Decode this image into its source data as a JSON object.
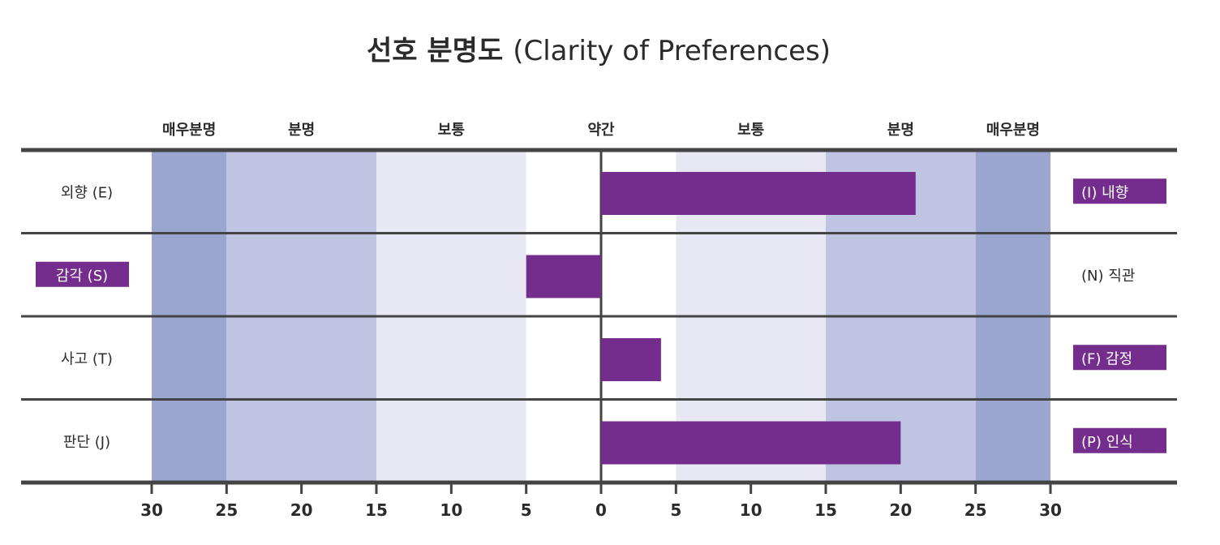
{
  "chart_data": {
    "type": "bar",
    "title_bold": "선호 분명도",
    "title_light": "(Clarity of Preferences)",
    "xlim": [
      -30,
      30
    ],
    "ticks": [
      30,
      25,
      20,
      15,
      10,
      5,
      0,
      5,
      10,
      15,
      20,
      25,
      30
    ],
    "clarity_bands": [
      "매우분명",
      "분명",
      "보통",
      "약간",
      "보통",
      "분명",
      "매우분명"
    ],
    "band_colors": {
      "very_clear": "#9aa6d0",
      "clear": "#bfc4e2",
      "moderate": "#e8e8f4",
      "slight": "#ffffff"
    },
    "bar_color": "#742d8c",
    "grid_color": "#444444",
    "rows": [
      {
        "left_label": "외향 (E)",
        "right_label": "(I) 내향",
        "value": 21,
        "highlight": "right"
      },
      {
        "left_label": "감각 (S)",
        "right_label": "(N) 직관",
        "value": -5,
        "highlight": "left"
      },
      {
        "left_label": "사고 (T)",
        "right_label": "(F) 감정",
        "value": 4,
        "highlight": "right"
      },
      {
        "left_label": "판단 (J)",
        "right_label": "(P) 인식",
        "value": 20,
        "highlight": "right"
      }
    ]
  }
}
